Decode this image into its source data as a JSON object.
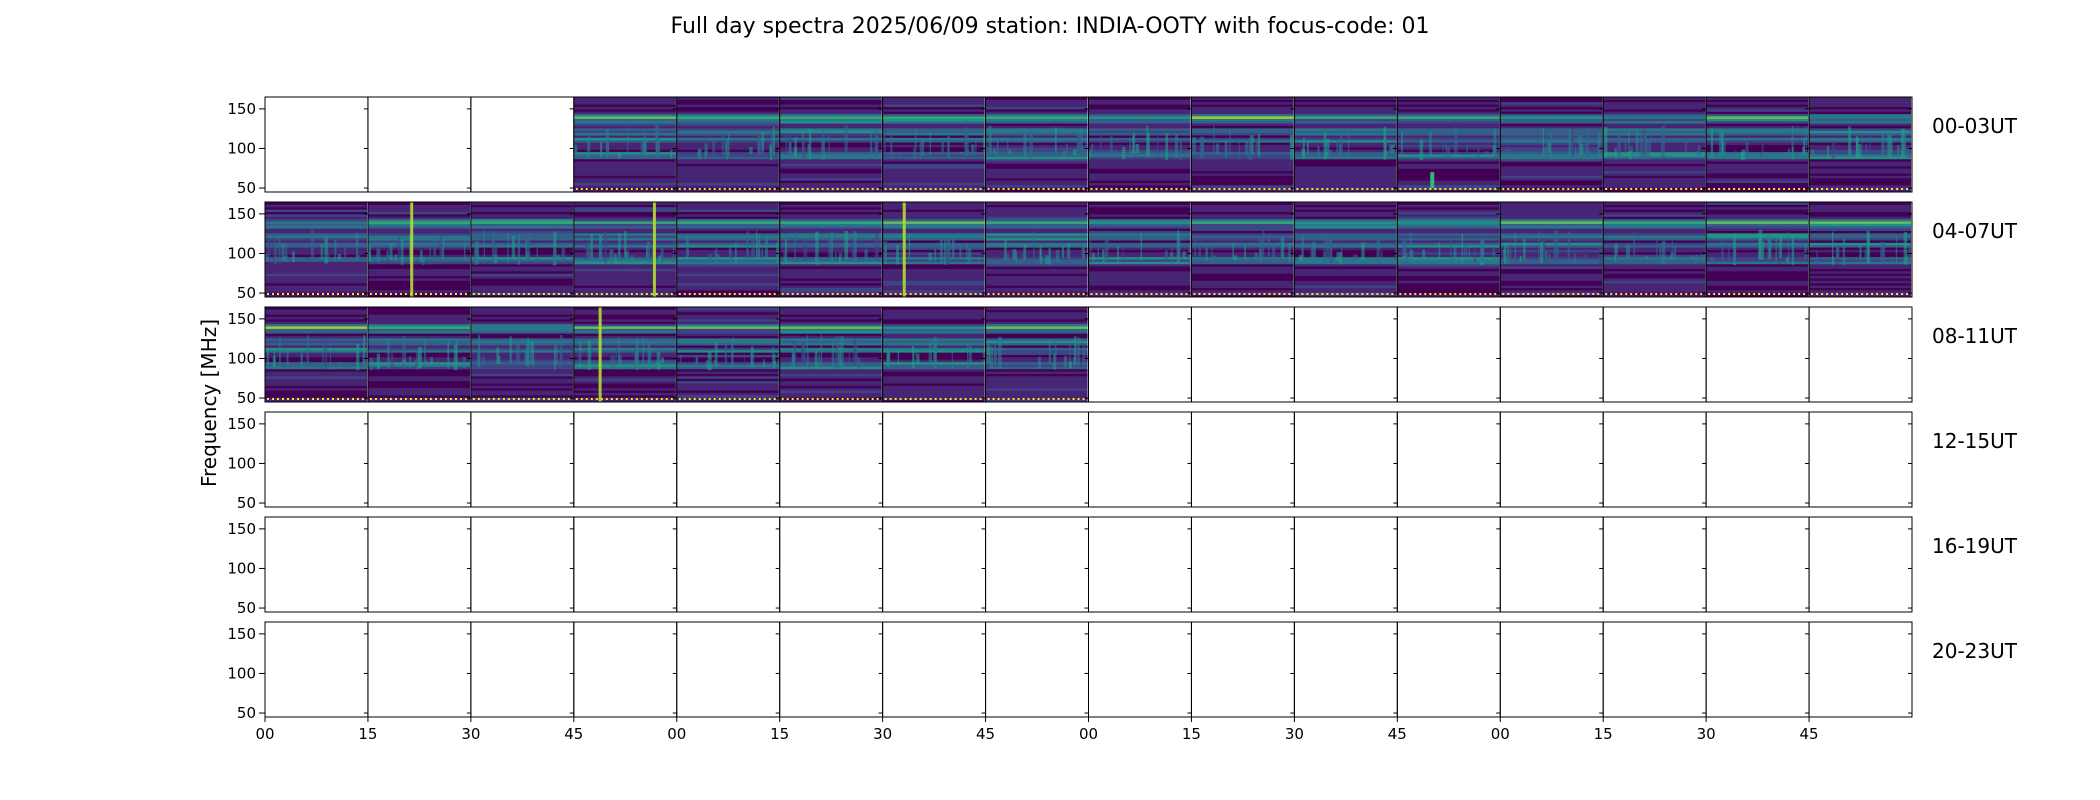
{
  "chart_data": {
    "type": "heatmap",
    "title": "Full day spectra 2025/06/09 station: INDIA-OOTY with focus-code: 01",
    "ylabel": "Frequency [MHz]",
    "xlabel": "",
    "ylim": [
      45,
      165
    ],
    "y_ticks": [
      "50",
      "100",
      "150"
    ],
    "x_tick_labels": [
      "00",
      "15",
      "30",
      "45",
      "00",
      "15",
      "30",
      "45",
      "00",
      "15",
      "30",
      "45",
      "00",
      "15",
      "30",
      "45"
    ],
    "colormap": "viridis",
    "colormap_stops": [
      "#440154",
      "#482878",
      "#3e4a89",
      "#31688e",
      "#26828e",
      "#1f9e89",
      "#35b779",
      "#6ece58",
      "#b5de2b",
      "#fde725"
    ],
    "rows": [
      {
        "label": "00-03UT",
        "filled": [
          false,
          false,
          false,
          true,
          true,
          true,
          true,
          true,
          true,
          true,
          true,
          true,
          true,
          true,
          true,
          true
        ]
      },
      {
        "label": "04-07UT",
        "filled": [
          true,
          true,
          true,
          true,
          true,
          true,
          true,
          true,
          true,
          true,
          true,
          true,
          true,
          true,
          true,
          true
        ]
      },
      {
        "label": "08-11UT",
        "filled": [
          true,
          true,
          true,
          true,
          true,
          true,
          true,
          true,
          false,
          false,
          false,
          false,
          false,
          false,
          false,
          false
        ]
      },
      {
        "label": "12-15UT",
        "filled": [
          false,
          false,
          false,
          false,
          false,
          false,
          false,
          false,
          false,
          false,
          false,
          false,
          false,
          false,
          false,
          false
        ]
      },
      {
        "label": "16-19UT",
        "filled": [
          false,
          false,
          false,
          false,
          false,
          false,
          false,
          false,
          false,
          false,
          false,
          false,
          false,
          false,
          false,
          false
        ]
      },
      {
        "label": "20-23UT",
        "filled": [
          false,
          false,
          false,
          false,
          false,
          false,
          false,
          false,
          false,
          false,
          false,
          false,
          false,
          false,
          false,
          false
        ]
      }
    ],
    "rfi_bands_mhz": [
      90,
      110,
      120,
      135,
      140
    ],
    "bright_bursts": [
      {
        "row": 1,
        "col": 1,
        "kind": "vertical-line"
      },
      {
        "row": 1,
        "col": 3,
        "kind": "vertical-line"
      },
      {
        "row": 1,
        "col": 6,
        "kind": "vertical-line"
      },
      {
        "row": 2,
        "col": 3,
        "kind": "vertical-line"
      },
      {
        "row": 0,
        "col": 11,
        "kind": "low-frequency-streak"
      }
    ]
  }
}
